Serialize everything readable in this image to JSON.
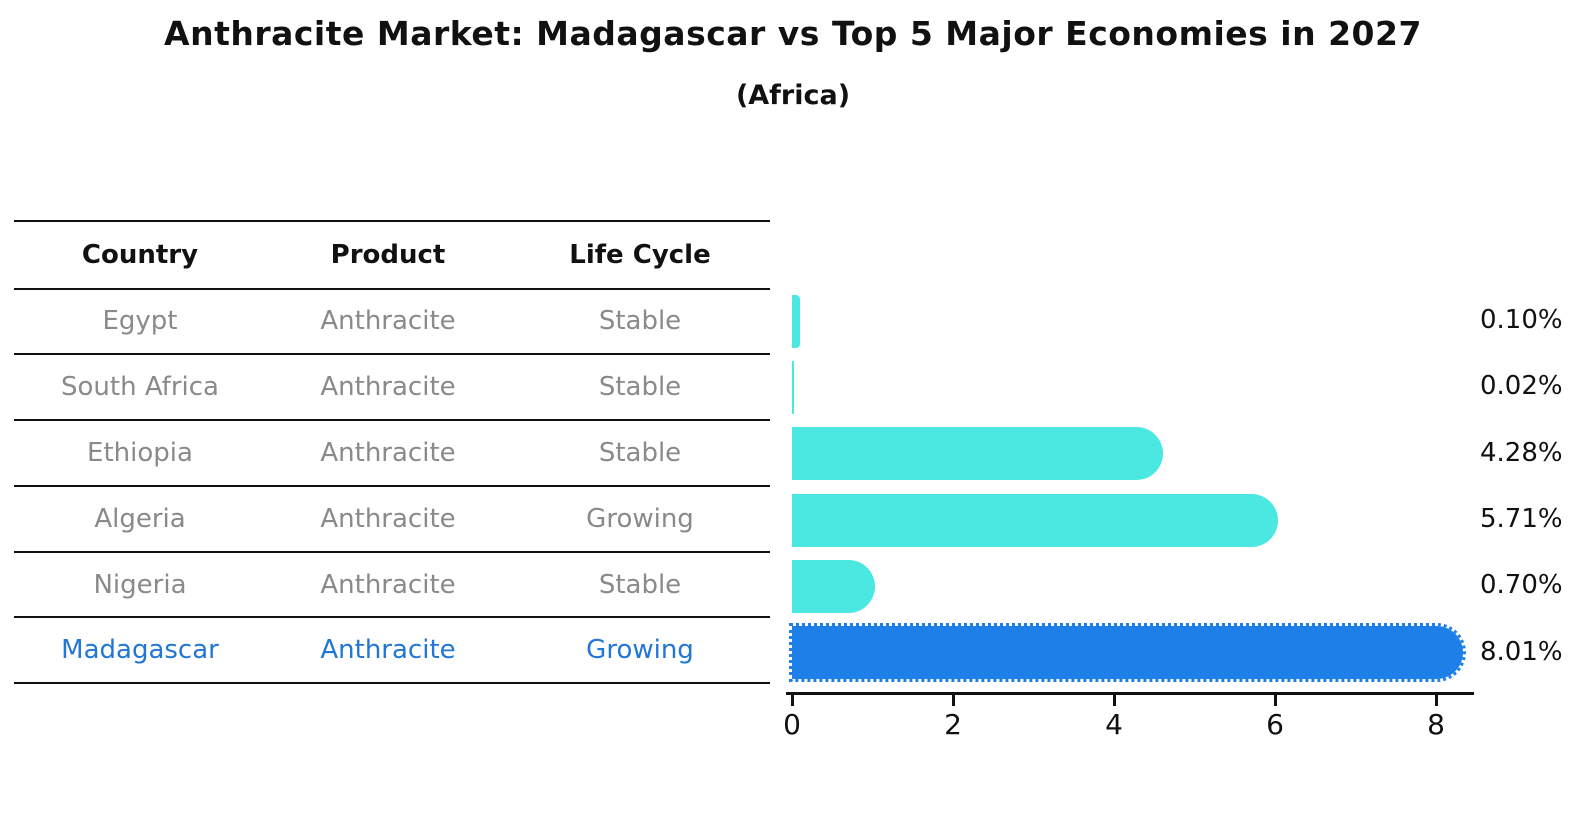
{
  "title": "Anthracite Market: Madagascar vs Top 5 Major Economies in 2027",
  "subtitle": "(Africa)",
  "table": {
    "headers": [
      "Country",
      "Product",
      "Life Cycle"
    ],
    "rows": [
      {
        "country": "Egypt",
        "product": "Anthracite",
        "life_cycle": "Stable",
        "emphasis": false
      },
      {
        "country": "South Africa",
        "product": "Anthracite",
        "life_cycle": "Stable",
        "emphasis": false
      },
      {
        "country": "Ethiopia",
        "product": "Anthracite",
        "life_cycle": "Stable",
        "emphasis": false
      },
      {
        "country": "Algeria",
        "product": "Anthracite",
        "life_cycle": "Growing",
        "emphasis": false
      },
      {
        "country": "Nigeria",
        "product": "Anthracite",
        "life_cycle": "Stable",
        "emphasis": false
      },
      {
        "country": "Madagascar",
        "product": "Anthracite",
        "life_cycle": "Growing",
        "emphasis": true
      }
    ]
  },
  "chart_data": {
    "type": "bar",
    "orientation": "horizontal",
    "title": "Anthracite Market: Madagascar vs Top 5 Major Economies in 2027",
    "subtitle": "(Africa)",
    "categories": [
      "Egypt",
      "South Africa",
      "Ethiopia",
      "Algeria",
      "Nigeria",
      "Madagascar"
    ],
    "values": [
      0.1,
      0.02,
      4.28,
      5.71,
      0.7,
      8.01
    ],
    "labels": [
      "0.10%",
      "0.02%",
      "4.28%",
      "5.71%",
      "0.70%",
      "8.01%"
    ],
    "xlabel": "",
    "ylabel": "",
    "xlim": [
      0,
      8.45
    ],
    "xticks": [
      0,
      2,
      4,
      6,
      8
    ],
    "grid": false,
    "legend": false,
    "highlight_category": "Madagascar",
    "bar_color": "#4AE8E0",
    "highlight_color": "#1F7FE8"
  },
  "colors": {
    "bar": "#4AE8E0",
    "highlight": "#1F7FE8",
    "highlight_text": "#2277D4",
    "table_text": "#8A8A8A",
    "header_text": "#111111",
    "axis": "#111111",
    "background": "#FFFFFF"
  }
}
